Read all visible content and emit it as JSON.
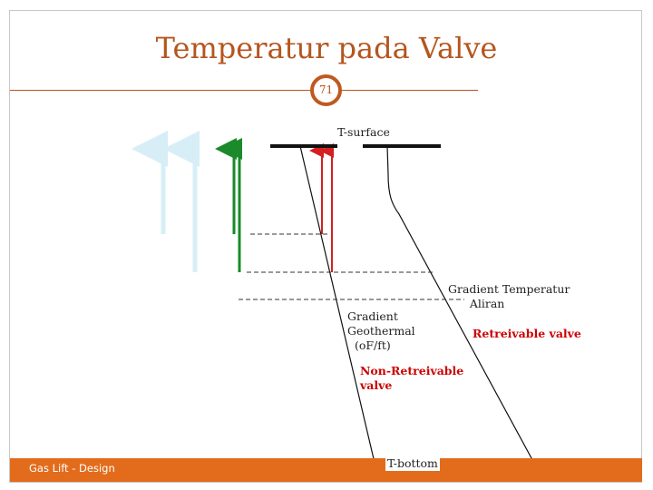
{
  "slide": {
    "title": "Temperatur pada Valve",
    "page_number": "71",
    "footer": "Gas Lift - Design"
  },
  "labels": {
    "t_surface": "T-surface",
    "t_bottom": "T-bottom",
    "gradient_flow": "Gradient Temperatur\n      Aliran",
    "gradient_geothermal": "Gradient\nGeothermal\n  (oF/ft)",
    "retrievable": "Retreivable valve",
    "non_retrievable": "Non-Retreivable\nvalve"
  },
  "colors": {
    "accent": "#e36c1c",
    "title": "#b5551e",
    "arrow_red": "#d42020",
    "arrow_green": "#1a8a2a",
    "arrow_pale": "#d8eef6"
  }
}
